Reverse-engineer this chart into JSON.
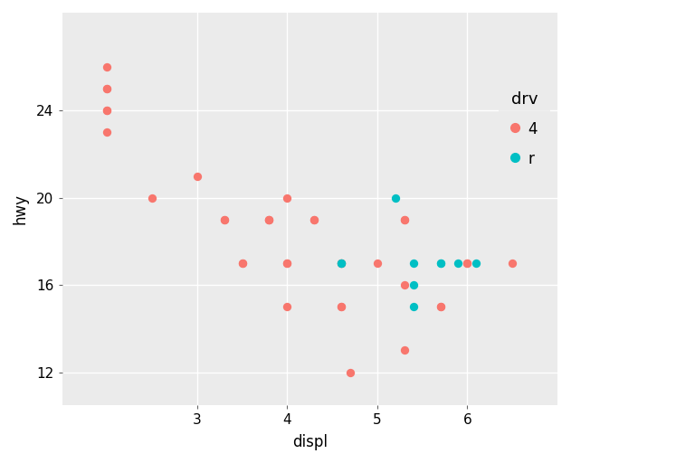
{
  "xlabel": "displ",
  "ylabel": "hwy",
  "legend_title": "drv",
  "colors": {
    "4": "#F8766D",
    "r": "#00BFC4"
  },
  "panel_bg": "#EBEBEB",
  "fig_bg": "#FFFFFF",
  "grid_color": "#FFFFFF",
  "points_4": [
    [
      2.0,
      26
    ],
    [
      2.0,
      25
    ],
    [
      2.0,
      25
    ],
    [
      2.0,
      24
    ],
    [
      2.0,
      24
    ],
    [
      2.0,
      23
    ],
    [
      2.5,
      20
    ],
    [
      3.0,
      21
    ],
    [
      3.3,
      19
    ],
    [
      3.3,
      19
    ],
    [
      3.5,
      17
    ],
    [
      3.5,
      17
    ],
    [
      3.8,
      19
    ],
    [
      3.8,
      19
    ],
    [
      3.8,
      19
    ],
    [
      4.0,
      20
    ],
    [
      4.0,
      17
    ],
    [
      4.0,
      17
    ],
    [
      4.0,
      15
    ],
    [
      4.3,
      19
    ],
    [
      4.3,
      19
    ],
    [
      4.6,
      17
    ],
    [
      4.6,
      17
    ],
    [
      4.6,
      15
    ],
    [
      4.6,
      15
    ],
    [
      4.7,
      12
    ],
    [
      5.0,
      17
    ],
    [
      5.3,
      19
    ],
    [
      5.3,
      19
    ],
    [
      5.3,
      16
    ],
    [
      5.3,
      13
    ],
    [
      5.7,
      15
    ],
    [
      5.7,
      15
    ],
    [
      6.0,
      17
    ],
    [
      6.0,
      17
    ],
    [
      6.5,
      17
    ]
  ],
  "points_r": [
    [
      4.6,
      17
    ],
    [
      4.6,
      17
    ],
    [
      5.2,
      20
    ],
    [
      5.4,
      17
    ],
    [
      5.4,
      16
    ],
    [
      5.4,
      15
    ],
    [
      5.7,
      17
    ],
    [
      5.7,
      17
    ],
    [
      5.9,
      17
    ],
    [
      6.1,
      17
    ]
  ],
  "xlim": [
    1.5,
    7.0
  ],
  "ylim": [
    10.5,
    28.5
  ],
  "xticks": [
    3,
    4,
    5,
    6
  ],
  "yticks": [
    12,
    16,
    20,
    24
  ],
  "marker_size": 45,
  "alpha": 1.0,
  "axis_label_fontsize": 12,
  "tick_fontsize": 11,
  "legend_title_fontsize": 13,
  "legend_fontsize": 12
}
